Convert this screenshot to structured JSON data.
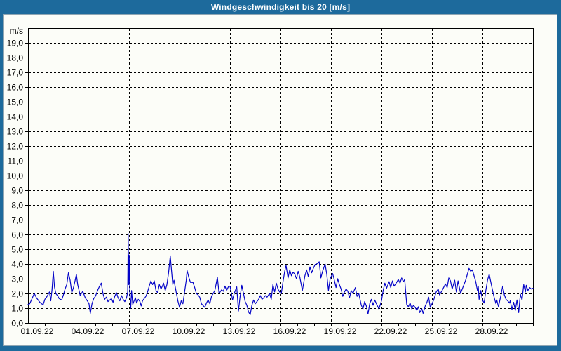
{
  "title": "Windgeschwindigkeit bis 20 [m/s]",
  "colors": {
    "frame": "#1d6a9c",
    "panel": "#fcfdf8",
    "line": "#0404c8",
    "grid": "#000000",
    "axis_text": "#000000",
    "title_text": "#ffffff"
  },
  "chart_data": {
    "type": "line",
    "title": "Windgeschwindigkeit bis 20 [m/s]",
    "unit_label": "m/s",
    "ylim": [
      0,
      20
    ],
    "xlim_days": [
      0,
      30
    ],
    "grid": "dashed",
    "legend": "none",
    "y_ticks": [
      {
        "v": 0,
        "label": "0,0"
      },
      {
        "v": 1,
        "label": "1,0"
      },
      {
        "v": 2,
        "label": "2,0"
      },
      {
        "v": 3,
        "label": "3,0"
      },
      {
        "v": 4,
        "label": "4,0"
      },
      {
        "v": 5,
        "label": "5,0"
      },
      {
        "v": 6,
        "label": "6,0"
      },
      {
        "v": 7,
        "label": "7,0"
      },
      {
        "v": 8,
        "label": "8,0"
      },
      {
        "v": 9,
        "label": "9,0"
      },
      {
        "v": 10,
        "label": "10,0"
      },
      {
        "v": 11,
        "label": "11,0"
      },
      {
        "v": 12,
        "label": "12,0"
      },
      {
        "v": 13,
        "label": "13,0"
      },
      {
        "v": 14,
        "label": "14,0"
      },
      {
        "v": 15,
        "label": "15,0"
      },
      {
        "v": 16,
        "label": "16,0"
      },
      {
        "v": 17,
        "label": "17,0"
      },
      {
        "v": 18,
        "label": "18,0"
      },
      {
        "v": 19,
        "label": "19,0"
      }
    ],
    "x_ticks": [
      {
        "day": 0,
        "label": "01.09.22"
      },
      {
        "day": 3,
        "label": "04.09.22"
      },
      {
        "day": 6,
        "label": "07.09.22"
      },
      {
        "day": 9,
        "label": "10.09.22"
      },
      {
        "day": 12,
        "label": "13.09.22"
      },
      {
        "day": 15,
        "label": "16.09.22"
      },
      {
        "day": 18,
        "label": "19.09.22"
      },
      {
        "day": 21,
        "label": "22.09.22"
      },
      {
        "day": 24,
        "label": "25.09.22"
      },
      {
        "day": 27,
        "label": "28.09.22"
      }
    ],
    "minor_tick_every_days": 1,
    "series": [
      {
        "name": "Windgeschwindigkeit",
        "points": [
          [
            0,
            1.25
          ],
          [
            0.1,
            1.3
          ],
          [
            0.2,
            1.55
          ],
          [
            0.37,
            2.0
          ],
          [
            0.5,
            1.7
          ],
          [
            0.6,
            1.55
          ],
          [
            0.7,
            1.4
          ],
          [
            0.8,
            1.3
          ],
          [
            0.9,
            1.25
          ],
          [
            1.0,
            1.6
          ],
          [
            1.1,
            1.75
          ],
          [
            1.27,
            2.1
          ],
          [
            1.35,
            1.5
          ],
          [
            1.42,
            2.2
          ],
          [
            1.5,
            3.5
          ],
          [
            1.57,
            2.45
          ],
          [
            1.65,
            2.0
          ],
          [
            1.75,
            1.85
          ],
          [
            1.85,
            1.65
          ],
          [
            2.0,
            1.55
          ],
          [
            2.1,
            1.9
          ],
          [
            2.2,
            2.3
          ],
          [
            2.3,
            2.6
          ],
          [
            2.4,
            3.4
          ],
          [
            2.5,
            2.9
          ],
          [
            2.6,
            2.05
          ],
          [
            2.7,
            2.4
          ],
          [
            2.8,
            2.9
          ],
          [
            2.87,
            3.3
          ],
          [
            2.95,
            2.6
          ],
          [
            3.1,
            1.85
          ],
          [
            3.25,
            2.15
          ],
          [
            3.4,
            1.7
          ],
          [
            3.55,
            1.45
          ],
          [
            3.62,
            1.3
          ],
          [
            3.7,
            0.65
          ],
          [
            3.8,
            1.3
          ],
          [
            3.9,
            1.65
          ],
          [
            4.0,
            1.8
          ],
          [
            4.15,
            2.25
          ],
          [
            4.25,
            2.5
          ],
          [
            4.35,
            2.7
          ],
          [
            4.45,
            2.0
          ],
          [
            4.55,
            1.6
          ],
          [
            4.65,
            1.75
          ],
          [
            4.75,
            1.45
          ],
          [
            4.85,
            1.55
          ],
          [
            4.95,
            1.65
          ],
          [
            5.05,
            1.4
          ],
          [
            5.15,
            1.8
          ],
          [
            5.25,
            2.05
          ],
          [
            5.35,
            1.7
          ],
          [
            5.45,
            1.5
          ],
          [
            5.55,
            1.85
          ],
          [
            5.65,
            1.6
          ],
          [
            5.75,
            1.45
          ],
          [
            5.85,
            1.7
          ],
          [
            5.92,
            2.1
          ],
          [
            5.95,
            6.05
          ],
          [
            5.98,
            2.6
          ],
          [
            6.01,
            4.6
          ],
          [
            6.05,
            1.9
          ],
          [
            6.1,
            1.0
          ],
          [
            6.15,
            2.2
          ],
          [
            6.22,
            1.25
          ],
          [
            6.3,
            1.5
          ],
          [
            6.38,
            1.7
          ],
          [
            6.45,
            1.35
          ],
          [
            6.55,
            1.6
          ],
          [
            6.65,
            1.45
          ],
          [
            6.72,
            1.15
          ],
          [
            6.8,
            1.5
          ],
          [
            6.9,
            1.65
          ],
          [
            7.0,
            1.8
          ],
          [
            7.1,
            2.1
          ],
          [
            7.2,
            2.5
          ],
          [
            7.3,
            2.85
          ],
          [
            7.4,
            2.6
          ],
          [
            7.5,
            2.85
          ],
          [
            7.6,
            2.2
          ],
          [
            7.7,
            2.05
          ],
          [
            7.8,
            2.6
          ],
          [
            7.9,
            2.3
          ],
          [
            8.0,
            2.55
          ],
          [
            8.05,
            2.7
          ],
          [
            8.15,
            2.2
          ],
          [
            8.25,
            2.6
          ],
          [
            8.35,
            3.4
          ],
          [
            8.45,
            4.55
          ],
          [
            8.52,
            3.6
          ],
          [
            8.6,
            2.6
          ],
          [
            8.67,
            2.9
          ],
          [
            8.8,
            2.1
          ],
          [
            8.9,
            1.5
          ],
          [
            9.0,
            1.05
          ],
          [
            9.1,
            1.5
          ],
          [
            9.2,
            1.3
          ],
          [
            9.3,
            2.1
          ],
          [
            9.4,
            2.9
          ],
          [
            9.45,
            3.55
          ],
          [
            9.55,
            3.1
          ],
          [
            9.65,
            2.75
          ],
          [
            9.8,
            2.75
          ],
          [
            9.9,
            2.4
          ],
          [
            10.0,
            2.0
          ],
          [
            10.1,
            1.9
          ],
          [
            10.2,
            1.75
          ],
          [
            10.3,
            1.3
          ],
          [
            10.5,
            1.05
          ],
          [
            10.6,
            1.35
          ],
          [
            10.7,
            1.55
          ],
          [
            10.8,
            1.3
          ],
          [
            10.9,
            1.8
          ],
          [
            11.0,
            2.0
          ],
          [
            11.1,
            2.2
          ],
          [
            11.25,
            3.1
          ],
          [
            11.35,
            2.0
          ],
          [
            11.5,
            2.25
          ],
          [
            11.6,
            2.15
          ],
          [
            11.7,
            2.5
          ],
          [
            11.8,
            2.2
          ],
          [
            11.9,
            2.45
          ],
          [
            12.0,
            2.5
          ],
          [
            12.1,
            1.9
          ],
          [
            12.15,
            1.55
          ],
          [
            12.25,
            2.0
          ],
          [
            12.4,
            2.45
          ],
          [
            12.5,
            0.8
          ],
          [
            12.6,
            1.8
          ],
          [
            12.7,
            2.55
          ],
          [
            12.8,
            2.0
          ],
          [
            12.9,
            1.45
          ],
          [
            13.0,
            1.2
          ],
          [
            13.1,
            0.75
          ],
          [
            13.2,
            0.55
          ],
          [
            13.3,
            1.2
          ],
          [
            13.4,
            1.55
          ],
          [
            13.5,
            1.3
          ],
          [
            13.6,
            1.45
          ],
          [
            13.7,
            1.6
          ],
          [
            13.8,
            1.85
          ],
          [
            13.9,
            1.6
          ],
          [
            14.0,
            1.7
          ],
          [
            14.1,
            1.85
          ],
          [
            14.2,
            1.75
          ],
          [
            14.35,
            2.0
          ],
          [
            14.45,
            1.6
          ],
          [
            14.55,
            2.6
          ],
          [
            14.65,
            2.1
          ],
          [
            14.75,
            2.7
          ],
          [
            14.85,
            2.3
          ],
          [
            14.95,
            2.1
          ],
          [
            15.05,
            2.0
          ],
          [
            15.15,
            2.8
          ],
          [
            15.25,
            3.5
          ],
          [
            15.33,
            3.9
          ],
          [
            15.45,
            3.05
          ],
          [
            15.55,
            3.6
          ],
          [
            15.65,
            3.2
          ],
          [
            15.75,
            3.45
          ],
          [
            15.85,
            3.3
          ],
          [
            15.95,
            3.0
          ],
          [
            16.05,
            3.5
          ],
          [
            16.15,
            3.1
          ],
          [
            16.3,
            2.2
          ],
          [
            16.45,
            3.2
          ],
          [
            16.55,
            3.6
          ],
          [
            16.65,
            3.15
          ],
          [
            16.75,
            3.8
          ],
          [
            16.85,
            3.4
          ],
          [
            16.95,
            3.7
          ],
          [
            17.05,
            3.95
          ],
          [
            17.15,
            4.0
          ],
          [
            17.3,
            4.15
          ],
          [
            17.4,
            3.05
          ],
          [
            17.5,
            3.5
          ],
          [
            17.65,
            4.0
          ],
          [
            17.75,
            3.3
          ],
          [
            17.85,
            2.2
          ],
          [
            17.95,
            3.0
          ],
          [
            18.1,
            3.35
          ],
          [
            18.2,
            2.9
          ],
          [
            18.3,
            2.4
          ],
          [
            18.4,
            3.0
          ],
          [
            18.5,
            2.6
          ],
          [
            18.6,
            2.3
          ],
          [
            18.7,
            1.8
          ],
          [
            18.8,
            2.1
          ],
          [
            18.9,
            2.3
          ],
          [
            19.0,
            2.15
          ],
          [
            19.1,
            1.7
          ],
          [
            19.2,
            2.2
          ],
          [
            19.3,
            2.0
          ],
          [
            19.45,
            2.4
          ],
          [
            19.55,
            1.8
          ],
          [
            19.65,
            2.0
          ],
          [
            19.8,
            1.2
          ],
          [
            19.9,
            0.95
          ],
          [
            20.0,
            1.45
          ],
          [
            20.1,
            1.15
          ],
          [
            20.2,
            0.6
          ],
          [
            20.3,
            1.3
          ],
          [
            20.4,
            1.6
          ],
          [
            20.5,
            1.2
          ],
          [
            20.6,
            1.55
          ],
          [
            20.7,
            1.3
          ],
          [
            20.85,
            0.95
          ],
          [
            21.0,
            1.5
          ],
          [
            21.1,
            2.2
          ],
          [
            21.2,
            2.7
          ],
          [
            21.3,
            2.35
          ],
          [
            21.45,
            2.8
          ],
          [
            21.55,
            2.4
          ],
          [
            21.65,
            2.85
          ],
          [
            21.75,
            2.5
          ],
          [
            21.9,
            2.75
          ],
          [
            22.0,
            2.95
          ],
          [
            22.1,
            2.7
          ],
          [
            22.2,
            3.05
          ],
          [
            22.3,
            2.8
          ],
          [
            22.38,
            2.95
          ],
          [
            22.5,
            1.25
          ],
          [
            22.6,
            1.1
          ],
          [
            22.7,
            1.35
          ],
          [
            22.8,
            0.95
          ],
          [
            22.9,
            1.2
          ],
          [
            23.0,
            1.05
          ],
          [
            23.1,
            0.85
          ],
          [
            23.2,
            1.1
          ],
          [
            23.27,
            0.7
          ],
          [
            23.4,
            0.95
          ],
          [
            23.47,
            0.65
          ],
          [
            23.6,
            1.15
          ],
          [
            23.7,
            1.4
          ],
          [
            23.8,
            1.75
          ],
          [
            23.9,
            1.05
          ],
          [
            24.0,
            1.3
          ],
          [
            24.1,
            1.55
          ],
          [
            24.25,
            2.1
          ],
          [
            24.37,
            2.3
          ],
          [
            24.45,
            1.9
          ],
          [
            24.6,
            2.2
          ],
          [
            24.8,
            2.65
          ],
          [
            24.9,
            2.4
          ],
          [
            25.0,
            3.05
          ],
          [
            25.1,
            2.85
          ],
          [
            25.2,
            2.3
          ],
          [
            25.35,
            2.9
          ],
          [
            25.45,
            2.1
          ],
          [
            25.55,
            2.85
          ],
          [
            25.7,
            2.0
          ],
          [
            25.8,
            2.3
          ],
          [
            25.9,
            2.6
          ],
          [
            26.0,
            2.9
          ],
          [
            26.1,
            3.3
          ],
          [
            26.2,
            3.7
          ],
          [
            26.3,
            3.5
          ],
          [
            26.4,
            3.6
          ],
          [
            26.5,
            3.2
          ],
          [
            26.6,
            2.8
          ],
          [
            26.7,
            2.2
          ],
          [
            26.75,
            2.5
          ],
          [
            26.8,
            1.6
          ],
          [
            26.9,
            2.2
          ],
          [
            27.0,
            1.55
          ],
          [
            27.1,
            1.35
          ],
          [
            27.2,
            2.2
          ],
          [
            27.3,
            2.9
          ],
          [
            27.4,
            3.3
          ],
          [
            27.5,
            2.75
          ],
          [
            27.6,
            2.2
          ],
          [
            27.7,
            1.7
          ],
          [
            27.8,
            1.3
          ],
          [
            27.85,
            1.55
          ],
          [
            27.95,
            1.1
          ],
          [
            28.1,
            1.9
          ],
          [
            28.2,
            2.5
          ],
          [
            28.3,
            1.9
          ],
          [
            28.4,
            1.6
          ],
          [
            28.5,
            1.5
          ],
          [
            28.6,
            1.35
          ],
          [
            28.65,
            1.5
          ],
          [
            28.75,
            0.9
          ],
          [
            28.85,
            1.4
          ],
          [
            28.95,
            0.85
          ],
          [
            29.05,
            1.55
          ],
          [
            29.15,
            0.7
          ],
          [
            29.25,
            1.95
          ],
          [
            29.35,
            1.55
          ],
          [
            29.45,
            2.6
          ],
          [
            29.55,
            2.1
          ],
          [
            29.6,
            2.55
          ],
          [
            29.7,
            2.2
          ],
          [
            29.8,
            2.4
          ],
          [
            29.9,
            2.3
          ],
          [
            30.0,
            2.35
          ]
        ]
      }
    ]
  }
}
